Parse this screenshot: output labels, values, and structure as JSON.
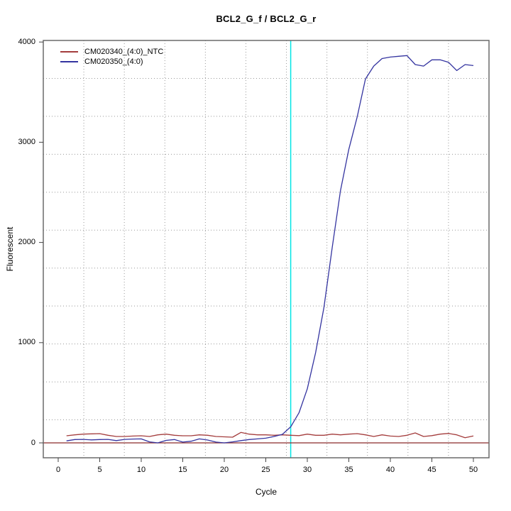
{
  "chart_data": {
    "type": "line",
    "title": "BCL2_G_f / BCL2_G_r",
    "xlabel": "Cycle",
    "ylabel": "Fluorescent",
    "x_ticks": [
      0,
      5,
      10,
      15,
      20,
      25,
      30,
      35,
      40,
      45,
      50
    ],
    "y_ticks": [
      0,
      1000,
      2000,
      3000,
      4000
    ],
    "xlim": [
      -1.8,
      51.9
    ],
    "ylim": [
      -150,
      4010
    ],
    "grid": "dotted, 11x11 divisions",
    "grid_color": "#999999",
    "threshold_line_x": 28,
    "threshold_color": "#00e5e5",
    "baseline_y": 0,
    "baseline_color": "#8b2a2a",
    "x": [
      1,
      2,
      3,
      4,
      5,
      6,
      7,
      8,
      9,
      10,
      11,
      12,
      13,
      14,
      15,
      16,
      17,
      18,
      19,
      20,
      21,
      22,
      23,
      24,
      25,
      26,
      27,
      28,
      29,
      30,
      31,
      32,
      33,
      34,
      35,
      36,
      37,
      38,
      39,
      40,
      41,
      42,
      43,
      44,
      45,
      46,
      47,
      48,
      49,
      50
    ],
    "series": [
      {
        "name": "CM020340_(4:0)_NTC",
        "color": "#a43d3d",
        "values": [
          71,
          80,
          87,
          90,
          92,
          76,
          64,
          64,
          68,
          71,
          64,
          80,
          87,
          76,
          71,
          71,
          80,
          76,
          64,
          60,
          57,
          104,
          87,
          80,
          80,
          76,
          80,
          76,
          72,
          87,
          76,
          76,
          87,
          80,
          87,
          92,
          80,
          64,
          80,
          68,
          64,
          76,
          99,
          64,
          72,
          87,
          94,
          80,
          52,
          69
        ]
      },
      {
        "name": "CM020350_(4:0)",
        "color": "#3434a0",
        "values": [
          20,
          33,
          35,
          30,
          33,
          35,
          23,
          35,
          38,
          40,
          10,
          0,
          25,
          33,
          8,
          16,
          40,
          28,
          8,
          0,
          10,
          23,
          33,
          40,
          47,
          64,
          85,
          160,
          300,
          540,
          900,
          1350,
          1950,
          2520,
          2930,
          3250,
          3630,
          3760,
          3835,
          3850,
          3858,
          3865,
          3775,
          3760,
          3822,
          3822,
          3798,
          3715,
          3775,
          3765
        ]
      }
    ],
    "legend_position": "top-left"
  }
}
